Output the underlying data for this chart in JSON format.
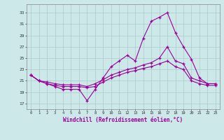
{
  "xlabel": "Windchill (Refroidissement éolien,°C)",
  "bg_color": "#cce8e8",
  "grid_color": "#aacccc",
  "line_color": "#990099",
  "x_ticks": [
    0,
    1,
    2,
    3,
    4,
    5,
    6,
    7,
    8,
    9,
    10,
    11,
    12,
    13,
    14,
    15,
    16,
    17,
    18,
    19,
    20,
    21,
    22,
    23
  ],
  "y_ticks": [
    17,
    19,
    21,
    23,
    25,
    27,
    29,
    31,
    33
  ],
  "ylim": [
    16.0,
    34.5
  ],
  "xlim": [
    -0.5,
    23.5
  ],
  "line1": [
    22,
    21,
    20.5,
    20,
    19.5,
    19.5,
    19.5,
    17.5,
    19.5,
    21.5,
    23.5,
    24.5,
    25.5,
    24.5,
    28.5,
    31.5,
    32.2,
    33,
    29.5,
    27,
    24.8,
    21.5,
    20.5,
    20.5
  ],
  "line2": [
    22,
    21,
    20.8,
    20.5,
    20.3,
    20.3,
    20.3,
    20.0,
    20.5,
    21.2,
    22.0,
    22.5,
    23.0,
    23.3,
    23.8,
    24.2,
    25.0,
    27.0,
    24.5,
    24.0,
    21.5,
    21.0,
    20.5,
    20.5
  ],
  "line3": [
    22,
    21,
    20.5,
    20.2,
    20.0,
    20.0,
    20.0,
    19.8,
    20.0,
    20.8,
    21.5,
    22.0,
    22.5,
    22.8,
    23.2,
    23.5,
    24.0,
    24.5,
    23.5,
    23.0,
    21.0,
    20.5,
    20.2,
    20.2
  ]
}
